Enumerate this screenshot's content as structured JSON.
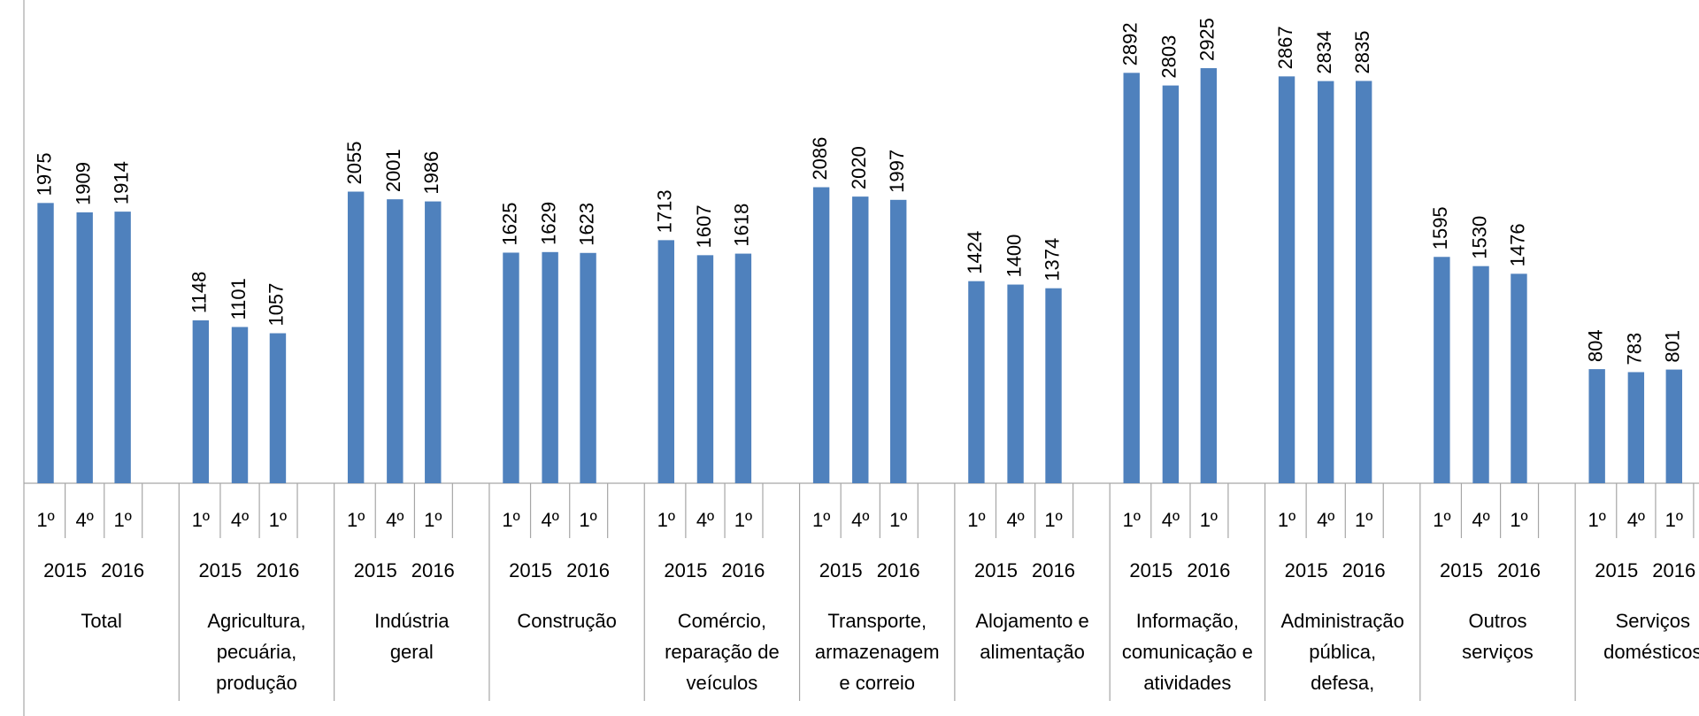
{
  "chart_data": {
    "type": "bar",
    "color": "#4f81bd",
    "ylim": [
      0,
      3000
    ],
    "quarters": [
      "1º",
      "4º",
      "1º"
    ],
    "years": [
      "2015",
      "2016"
    ],
    "categories": [
      [
        "Total"
      ],
      [
        "Agricultura,",
        "pecuária,",
        "produção"
      ],
      [
        "Indústria",
        "geral"
      ],
      [
        "Construção"
      ],
      [
        "Comércio,",
        "reparação de",
        "veículos"
      ],
      [
        "Transporte,",
        "armazenagem",
        "e correio"
      ],
      [
        "Alojamento e",
        "alimentação"
      ],
      [
        "Informação,",
        "comunicação e",
        "atividades"
      ],
      [
        "Administração",
        "pública,",
        "defesa,"
      ],
      [
        "Outros",
        "serviços"
      ],
      [
        "Serviços",
        "domésticos"
      ]
    ],
    "values": [
      [
        1975,
        1909,
        1914
      ],
      [
        1148,
        1101,
        1057
      ],
      [
        2055,
        2001,
        1986
      ],
      [
        1625,
        1629,
        1623
      ],
      [
        1713,
        1607,
        1618
      ],
      [
        2086,
        2020,
        1997
      ],
      [
        1424,
        1400,
        1374
      ],
      [
        2892,
        2803,
        2925
      ],
      [
        2867,
        2834,
        2835
      ],
      [
        1595,
        1530,
        1476
      ],
      [
        804,
        783,
        801
      ]
    ]
  }
}
